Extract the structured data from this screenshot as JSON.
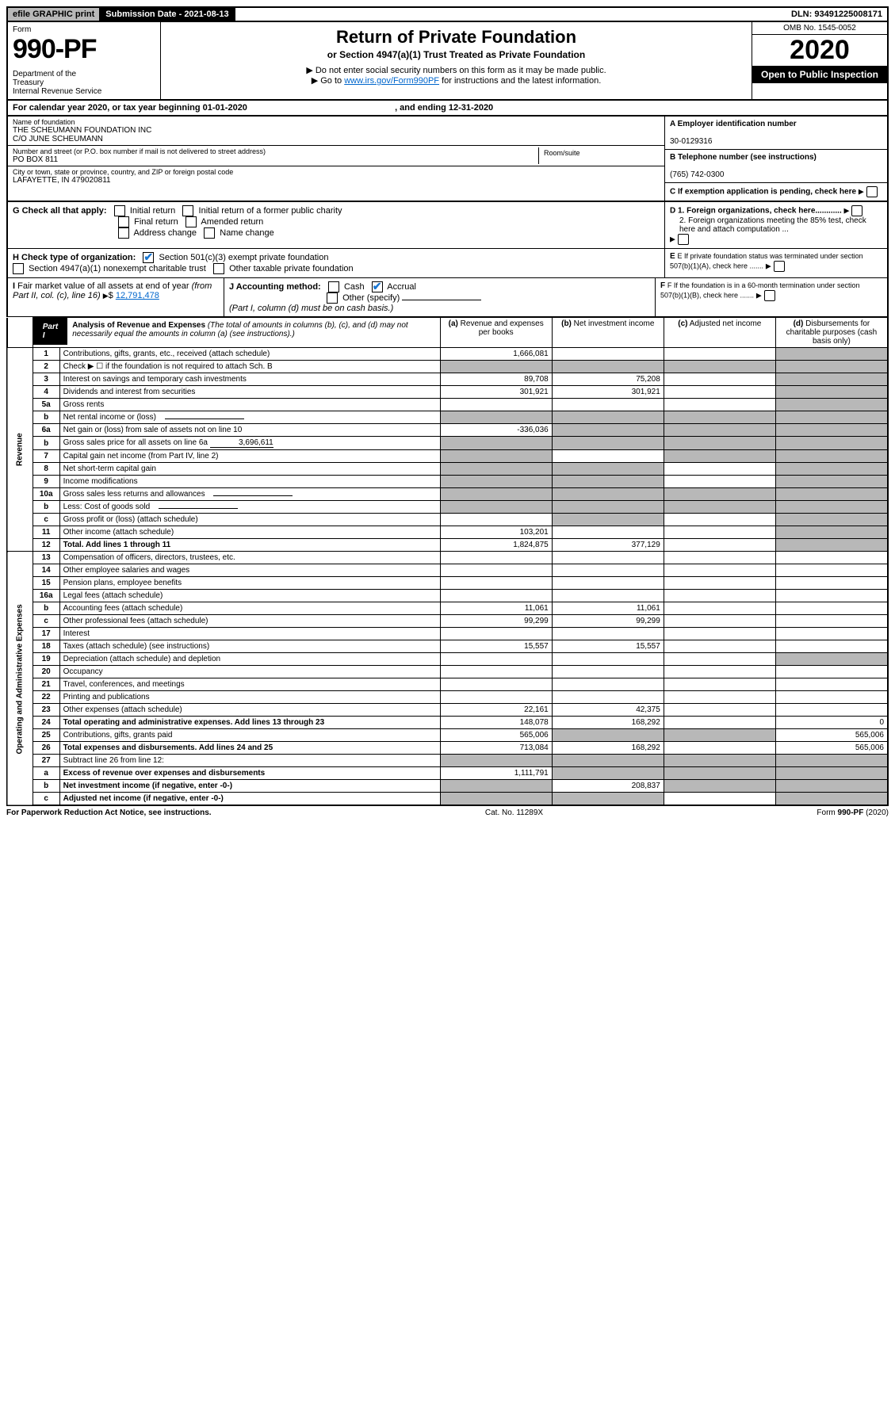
{
  "topbar": {
    "efile": "efile GRAPHIC print",
    "submission": "Submission Date - 2021-08-13",
    "dln": "DLN: 93491225008171"
  },
  "header": {
    "form_label": "Form",
    "form_num": "990-PF",
    "dept": "Department of the Treasury\nInternal Revenue Service",
    "title": "Return of Private Foundation",
    "subtitle": "or Section 4947(a)(1) Trust Treated as Private Foundation",
    "instr1": "▶ Do not enter social security numbers on this form as it may be made public.",
    "instr2_pre": "▶ Go to ",
    "instr2_link": "www.irs.gov/Form990PF",
    "instr2_post": " for instructions and the latest information.",
    "omb": "OMB No. 1545-0052",
    "year": "2020",
    "open": "Open to Public Inspection"
  },
  "cal_year": {
    "prefix": "For calendar year 2020, or tax year beginning ",
    "begin": "01-01-2020",
    "mid": " , and ending ",
    "end": "12-31-2020"
  },
  "info": {
    "name_label": "Name of foundation",
    "name": "THE SCHEUMANN FOUNDATION INC\nC/O JUNE SCHEUMANN",
    "addr_label": "Number and street (or P.O. box number if mail is not delivered to street address)",
    "addr": "PO BOX 811",
    "room_label": "Room/suite",
    "city_label": "City or town, state or province, country, and ZIP or foreign postal code",
    "city": "LAFAYETTE, IN  479020811",
    "ein_label": "A Employer identification number",
    "ein": "30-0129316",
    "tel_label": "B Telephone number (see instructions)",
    "tel": "(765) 742-0300",
    "c_label": "C If exemption application is pending, check here"
  },
  "g": {
    "label": "G Check all that apply:",
    "opts": [
      "Initial return",
      "Initial return of a former public charity",
      "Final return",
      "Amended return",
      "Address change",
      "Name change"
    ]
  },
  "d": {
    "d1": "D 1. Foreign organizations, check here............",
    "d2": "2. Foreign organizations meeting the 85% test, check here and attach computation ..."
  },
  "h": {
    "label": "H Check type of organization:",
    "opt1": "Section 501(c)(3) exempt private foundation",
    "opt2": "Section 4947(a)(1) nonexempt charitable trust",
    "opt3": "Other taxable private foundation"
  },
  "e_label": "E If private foundation status was terminated under section 507(b)(1)(A), check here .......",
  "i": {
    "label": "I Fair market value of all assets at end of year (from Part II, col. (c), line 16) ▶$ ",
    "value": "12,791,478"
  },
  "j": {
    "label": "J Accounting method:",
    "cash": "Cash",
    "accrual": "Accrual",
    "other": "Other (specify)",
    "note": "(Part I, column (d) must be on cash basis.)"
  },
  "f_label": "F If the foundation is in a 60-month termination under section 507(b)(1)(B), check here .......",
  "part1": {
    "label": "Part I",
    "title": "Analysis of Revenue and Expenses",
    "note": "(The total of amounts in columns (b), (c), and (d) may not necessarily equal the amounts in column (a) (see instructions).)",
    "cols": {
      "a": "(a) Revenue and expenses per books",
      "b": "(b) Net investment income",
      "c": "(c) Adjusted net income",
      "d": "(d) Disbursements for charitable purposes (cash basis only)"
    }
  },
  "revenue_label": "Revenue",
  "expenses_label": "Operating and Administrative Expenses",
  "rows": [
    {
      "n": "1",
      "desc": "Contributions, gifts, grants, etc., received (attach schedule)",
      "a": "1,666,081",
      "b": "",
      "c": "",
      "d": "",
      "shade_bcd": false,
      "shade_d": true
    },
    {
      "n": "2",
      "desc": "Check ▶ ☐ if the foundation is not required to attach Sch. B",
      "a": "",
      "b": "",
      "c": "",
      "d": "",
      "shade_all": true
    },
    {
      "n": "3",
      "desc": "Interest on savings and temporary cash investments",
      "a": "89,708",
      "b": "75,208",
      "c": "",
      "d": "",
      "shade_d": true
    },
    {
      "n": "4",
      "desc": "Dividends and interest from securities",
      "a": "301,921",
      "b": "301,921",
      "c": "",
      "d": "",
      "shade_d": true
    },
    {
      "n": "5a",
      "desc": "Gross rents",
      "a": "",
      "b": "",
      "c": "",
      "d": "",
      "shade_d": true
    },
    {
      "n": "b",
      "desc": "Net rental income or (loss)",
      "a": "",
      "b": "",
      "c": "",
      "d": "",
      "shade_all": true,
      "has_blank": true
    },
    {
      "n": "6a",
      "desc": "Net gain or (loss) from sale of assets not on line 10",
      "a": "-336,036",
      "b": "",
      "c": "",
      "d": "",
      "shade_bcd": true
    },
    {
      "n": "b",
      "desc": "Gross sales price for all assets on line 6a",
      "inline_val": "3,696,611",
      "a": "",
      "b": "",
      "c": "",
      "d": "",
      "shade_all": true
    },
    {
      "n": "7",
      "desc": "Capital gain net income (from Part IV, line 2)",
      "a": "",
      "b": "",
      "c": "",
      "d": "",
      "shade_a": true,
      "shade_cd": true
    },
    {
      "n": "8",
      "desc": "Net short-term capital gain",
      "a": "",
      "b": "",
      "c": "",
      "d": "",
      "shade_ab": true,
      "shade_d": true
    },
    {
      "n": "9",
      "desc": "Income modifications",
      "a": "",
      "b": "",
      "c": "",
      "d": "",
      "shade_ab": true,
      "shade_d": true
    },
    {
      "n": "10a",
      "desc": "Gross sales less returns and allowances",
      "a": "",
      "b": "",
      "c": "",
      "d": "",
      "shade_all": true,
      "has_blank": true
    },
    {
      "n": "b",
      "desc": "Less: Cost of goods sold",
      "a": "",
      "b": "",
      "c": "",
      "d": "",
      "shade_all": true,
      "has_blank": true
    },
    {
      "n": "c",
      "desc": "Gross profit or (loss) (attach schedule)",
      "a": "",
      "b": "",
      "c": "",
      "d": "",
      "shade_b": true,
      "shade_d": true
    },
    {
      "n": "11",
      "desc": "Other income (attach schedule)",
      "a": "103,201",
      "b": "",
      "c": "",
      "d": "",
      "shade_d": true
    },
    {
      "n": "12",
      "desc": "Total. Add lines 1 through 11",
      "a": "1,824,875",
      "b": "377,129",
      "c": "",
      "d": "",
      "shade_d": true,
      "bold": true
    }
  ],
  "exp_rows": [
    {
      "n": "13",
      "desc": "Compensation of officers, directors, trustees, etc.",
      "a": "",
      "b": "",
      "c": "",
      "d": ""
    },
    {
      "n": "14",
      "desc": "Other employee salaries and wages",
      "a": "",
      "b": "",
      "c": "",
      "d": ""
    },
    {
      "n": "15",
      "desc": "Pension plans, employee benefits",
      "a": "",
      "b": "",
      "c": "",
      "d": ""
    },
    {
      "n": "16a",
      "desc": "Legal fees (attach schedule)",
      "a": "",
      "b": "",
      "c": "",
      "d": ""
    },
    {
      "n": "b",
      "desc": "Accounting fees (attach schedule)",
      "a": "11,061",
      "b": "11,061",
      "c": "",
      "d": ""
    },
    {
      "n": "c",
      "desc": "Other professional fees (attach schedule)",
      "a": "99,299",
      "b": "99,299",
      "c": "",
      "d": ""
    },
    {
      "n": "17",
      "desc": "Interest",
      "a": "",
      "b": "",
      "c": "",
      "d": ""
    },
    {
      "n": "18",
      "desc": "Taxes (attach schedule) (see instructions)",
      "a": "15,557",
      "b": "15,557",
      "c": "",
      "d": ""
    },
    {
      "n": "19",
      "desc": "Depreciation (attach schedule) and depletion",
      "a": "",
      "b": "",
      "c": "",
      "d": "",
      "shade_d": true
    },
    {
      "n": "20",
      "desc": "Occupancy",
      "a": "",
      "b": "",
      "c": "",
      "d": ""
    },
    {
      "n": "21",
      "desc": "Travel, conferences, and meetings",
      "a": "",
      "b": "",
      "c": "",
      "d": ""
    },
    {
      "n": "22",
      "desc": "Printing and publications",
      "a": "",
      "b": "",
      "c": "",
      "d": ""
    },
    {
      "n": "23",
      "desc": "Other expenses (attach schedule)",
      "a": "22,161",
      "b": "42,375",
      "c": "",
      "d": ""
    },
    {
      "n": "24",
      "desc": "Total operating and administrative expenses. Add lines 13 through 23",
      "a": "148,078",
      "b": "168,292",
      "c": "",
      "d": "0",
      "bold": true
    },
    {
      "n": "25",
      "desc": "Contributions, gifts, grants paid",
      "a": "565,006",
      "b": "",
      "c": "",
      "d": "565,006",
      "shade_bc": true
    },
    {
      "n": "26",
      "desc": "Total expenses and disbursements. Add lines 24 and 25",
      "a": "713,084",
      "b": "168,292",
      "c": "",
      "d": "565,006",
      "bold": true
    },
    {
      "n": "27",
      "desc": "Subtract line 26 from line 12:",
      "a": "",
      "b": "",
      "c": "",
      "d": "",
      "shade_all": true
    },
    {
      "n": "a",
      "desc": "Excess of revenue over expenses and disbursements",
      "a": "1,111,791",
      "b": "",
      "c": "",
      "d": "",
      "shade_bcd": true,
      "bold": true
    },
    {
      "n": "b",
      "desc": "Net investment income (if negative, enter -0-)",
      "a": "",
      "b": "208,837",
      "c": "",
      "d": "",
      "shade_a": true,
      "shade_cd": true,
      "bold": true
    },
    {
      "n": "c",
      "desc": "Adjusted net income (if negative, enter -0-)",
      "a": "",
      "b": "",
      "c": "",
      "d": "",
      "shade_ab": true,
      "shade_d": true,
      "bold": true
    }
  ],
  "footer": {
    "left": "For Paperwork Reduction Act Notice, see instructions.",
    "mid": "Cat. No. 11289X",
    "right": "Form 990-PF (2020)"
  }
}
